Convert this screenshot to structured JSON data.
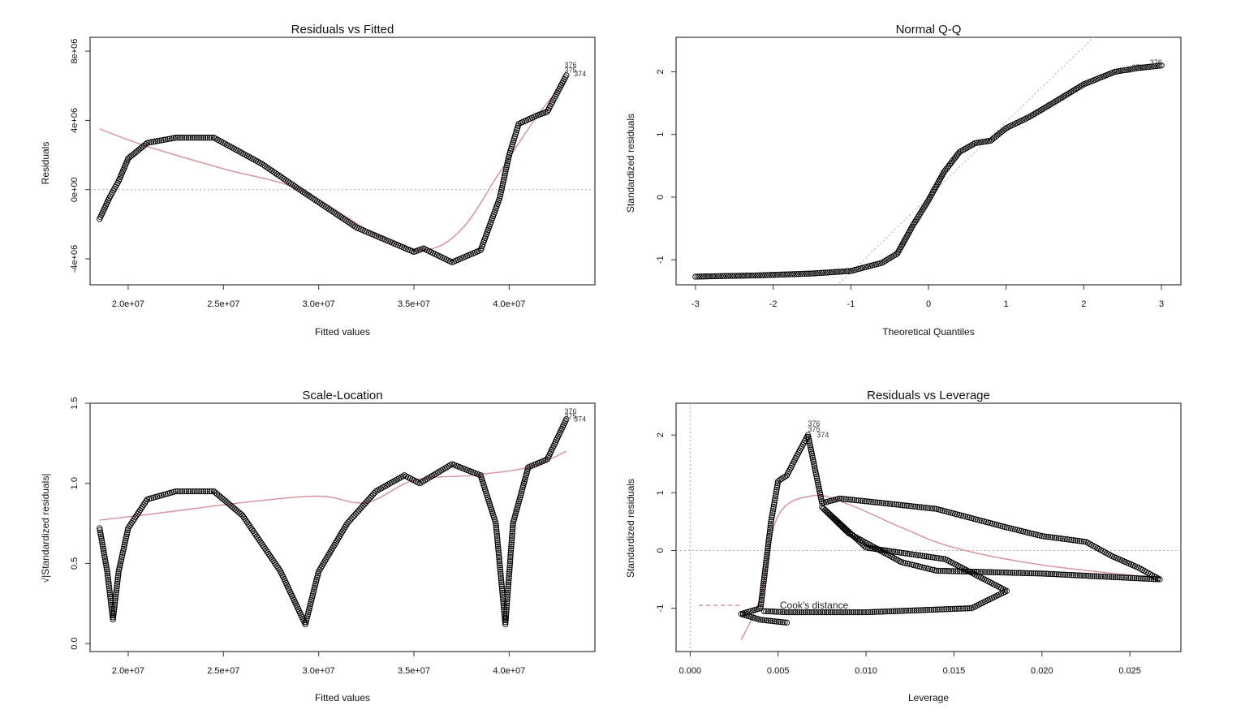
{
  "colors": {
    "points": "#000000",
    "smoother": "#d98f97",
    "reference": "#aaaaaa",
    "frame": "#333333"
  },
  "chart_data": [
    {
      "type": "scatter",
      "title": "Residuals vs Fitted",
      "xlabel": "Fitted values",
      "ylabel": "Residuals",
      "xticks": [
        20000000,
        25000000,
        30000000,
        35000000,
        40000000
      ],
      "xtick_labels": [
        "2.0e+07",
        "2.5e+07",
        "3.0e+07",
        "3.5e+07",
        "4.0e+07"
      ],
      "yticks": [
        -4000000,
        0,
        4000000,
        8000000
      ],
      "ytick_labels": [
        "-4e+06",
        "0e+00",
        "4e+06",
        "8e+06"
      ],
      "xlim": [
        18000000,
        44500000
      ],
      "ylim": [
        -5500000,
        8800000
      ],
      "reference_line": {
        "orientation": "horizontal",
        "value": 0
      },
      "points_path": [
        [
          18500000,
          -1700000
        ],
        [
          19000000,
          -500000
        ],
        [
          19500000,
          500000
        ],
        [
          20000000,
          1800000
        ],
        [
          21000000,
          2700000
        ],
        [
          22500000,
          3000000
        ],
        [
          24500000,
          3000000
        ],
        [
          27000000,
          1500000
        ],
        [
          29000000,
          0
        ],
        [
          32000000,
          -2200000
        ],
        [
          35000000,
          -3600000
        ],
        [
          35500000,
          -3400000
        ],
        [
          37000000,
          -4200000
        ],
        [
          38500000,
          -3500000
        ],
        [
          39500000,
          -500000
        ],
        [
          40000000,
          2000000
        ],
        [
          40500000,
          3800000
        ],
        [
          41500000,
          4300000
        ],
        [
          42000000,
          4500000
        ],
        [
          43000000,
          6600000
        ]
      ],
      "smoother": [
        [
          18500000,
          3500000
        ],
        [
          21000000,
          2500000
        ],
        [
          25000000,
          1200000
        ],
        [
          29000000,
          0
        ],
        [
          33000000,
          -2600000
        ],
        [
          35500000,
          -3500000
        ],
        [
          37500000,
          -2300000
        ],
        [
          39500000,
          1000000
        ],
        [
          41500000,
          4300000
        ],
        [
          43000000,
          6300000
        ]
      ],
      "annotations": [
        {
          "label": "376",
          "x": 42900000,
          "y": 7200000
        },
        {
          "label": "375",
          "x": 42900000,
          "y": 6900000
        },
        {
          "label": "374",
          "x": 43400000,
          "y": 6700000
        }
      ]
    },
    {
      "type": "scatter",
      "title": "Normal Q-Q",
      "xlabel": "Theoretical Quantiles",
      "ylabel": "Standardized residuals",
      "xticks": [
        -3,
        -2,
        -1,
        0,
        1,
        2,
        3
      ],
      "xtick_labels": [
        "-3",
        "-2",
        "-1",
        "0",
        "1",
        "2",
        "3"
      ],
      "yticks": [
        -1,
        0,
        1,
        2
      ],
      "ytick_labels": [
        "-1",
        "0",
        "1",
        "2"
      ],
      "xlim": [
        -3.25,
        3.25
      ],
      "ylim": [
        -1.4,
        2.55
      ],
      "reference_line": {
        "type": "diagonal",
        "slope": 1.2,
        "intercept": 0
      },
      "points_path": [
        [
          -3,
          -1.27
        ],
        [
          -2.2,
          -1.25
        ],
        [
          -1.5,
          -1.22
        ],
        [
          -1,
          -1.18
        ],
        [
          -0.6,
          -1.05
        ],
        [
          -0.4,
          -0.9
        ],
        [
          -0.2,
          -0.45
        ],
        [
          0,
          -0.05
        ],
        [
          0.2,
          0.4
        ],
        [
          0.4,
          0.72
        ],
        [
          0.6,
          0.86
        ],
        [
          0.8,
          0.9
        ],
        [
          1.0,
          1.1
        ],
        [
          1.3,
          1.28
        ],
        [
          1.6,
          1.5
        ],
        [
          2.0,
          1.8
        ],
        [
          2.4,
          2.0
        ],
        [
          2.7,
          2.06
        ],
        [
          3,
          2.1
        ]
      ],
      "annotations": [
        {
          "label": "376",
          "x": 2.85,
          "y": 2.15
        },
        {
          "label": "375",
          "x": 2.62,
          "y": 2.07
        },
        {
          "label": "374",
          "x": 2.45,
          "y": 2.02
        }
      ]
    },
    {
      "type": "scatter",
      "title": "Scale-Location",
      "xlabel": "Fitted values",
      "ylabel": "√|Standardized residuals|",
      "xticks": [
        20000000,
        25000000,
        30000000,
        35000000,
        40000000
      ],
      "xtick_labels": [
        "2.0e+07",
        "2.5e+07",
        "3.0e+07",
        "3.5e+07",
        "4.0e+07"
      ],
      "yticks": [
        0.0,
        0.5,
        1.0,
        1.5
      ],
      "ytick_labels": [
        "0.0",
        "0.5",
        "1.0",
        "1.5"
      ],
      "xlim": [
        18000000,
        44500000
      ],
      "ylim": [
        -0.05,
        1.5
      ],
      "points_path": [
        [
          18500000,
          0.72
        ],
        [
          18900000,
          0.45
        ],
        [
          19200000,
          0.15
        ],
        [
          19500000,
          0.45
        ],
        [
          20000000,
          0.72
        ],
        [
          21000000,
          0.9
        ],
        [
          22500000,
          0.95
        ],
        [
          24500000,
          0.95
        ],
        [
          26000000,
          0.8
        ],
        [
          28000000,
          0.45
        ],
        [
          29300000,
          0.12
        ],
        [
          30000000,
          0.45
        ],
        [
          31500000,
          0.75
        ],
        [
          33000000,
          0.95
        ],
        [
          34500000,
          1.05
        ],
        [
          35300000,
          1.0
        ],
        [
          37000000,
          1.12
        ],
        [
          38500000,
          1.05
        ],
        [
          39300000,
          0.75
        ],
        [
          39800000,
          0.12
        ],
        [
          40200000,
          0.75
        ],
        [
          41000000,
          1.1
        ],
        [
          42000000,
          1.15
        ],
        [
          43000000,
          1.4
        ]
      ],
      "smoother": [
        [
          18500000,
          0.77
        ],
        [
          22000000,
          0.82
        ],
        [
          26000000,
          0.88
        ],
        [
          30000000,
          0.92
        ],
        [
          32500000,
          0.88
        ],
        [
          35000000,
          1.02
        ],
        [
          38000000,
          1.05
        ],
        [
          41000000,
          1.1
        ],
        [
          43000000,
          1.2
        ]
      ],
      "annotations": [
        {
          "label": "376",
          "x": 42900000,
          "y": 1.45
        },
        {
          "label": "375",
          "x": 42900000,
          "y": 1.42
        },
        {
          "label": "374",
          "x": 43400000,
          "y": 1.4
        }
      ]
    },
    {
      "type": "scatter",
      "title": "Residuals vs Leverage",
      "xlabel": "Leverage",
      "ylabel": "Standardized residuals",
      "xticks": [
        0.0,
        0.005,
        0.01,
        0.015,
        0.02,
        0.025
      ],
      "xtick_labels": [
        "0.000",
        "0.005",
        "0.010",
        "0.015",
        "0.020",
        "0.025"
      ],
      "yticks": [
        -1,
        0,
        1,
        2
      ],
      "ytick_labels": [
        "-1",
        "0",
        "1",
        "2"
      ],
      "xlim": [
        -0.0008,
        0.0279
      ],
      "ylim": [
        -1.75,
        2.55
      ],
      "reference_line": {
        "orientation": "horizontal",
        "value": 0
      },
      "legend_text": "Cook's distance",
      "points_path": [
        [
          0.0055,
          -1.25
        ],
        [
          0.004,
          -1.2
        ],
        [
          0.0029,
          -1.1
        ],
        [
          0.004,
          -1.0
        ],
        [
          0.0042,
          -0.5
        ],
        [
          0.0046,
          0.5
        ],
        [
          0.005,
          1.2
        ],
        [
          0.0055,
          1.3
        ],
        [
          0.006,
          1.6
        ],
        [
          0.0067,
          2.0
        ],
        [
          0.0075,
          0.82
        ],
        [
          0.0085,
          0.9
        ],
        [
          0.011,
          0.82
        ],
        [
          0.014,
          0.72
        ],
        [
          0.018,
          0.4
        ],
        [
          0.02,
          0.25
        ],
        [
          0.0225,
          0.15
        ],
        [
          0.024,
          -0.1
        ],
        [
          0.0255,
          -0.3
        ],
        [
          0.0267,
          -0.5
        ],
        [
          0.02,
          -0.4
        ],
        [
          0.014,
          -0.35
        ],
        [
          0.012,
          -0.2
        ],
        [
          0.009,
          0.3
        ],
        [
          0.0075,
          0.75
        ],
        [
          0.01,
          0.05
        ],
        [
          0.0145,
          -0.15
        ],
        [
          0.018,
          -0.7
        ],
        [
          0.016,
          -1.0
        ],
        [
          0.01,
          -1.07
        ],
        [
          0.0055,
          -1.07
        ],
        [
          0.0042,
          -1.05
        ]
      ],
      "smoother": [
        [
          0.0029,
          -1.55
        ],
        [
          0.004,
          -0.8
        ],
        [
          0.005,
          0.6
        ],
        [
          0.007,
          0.95
        ],
        [
          0.009,
          0.8
        ],
        [
          0.012,
          0.4
        ],
        [
          0.015,
          0.05
        ],
        [
          0.02,
          -0.25
        ],
        [
          0.0267,
          -0.48
        ]
      ],
      "cooks_curve": [
        [
          0.0005,
          -0.95
        ],
        [
          0.0029,
          -0.95
        ]
      ],
      "annotations": [
        {
          "label": "376",
          "x": 0.0067,
          "y": 2.2
        },
        {
          "label": "375",
          "x": 0.0067,
          "y": 2.1
        },
        {
          "label": "374",
          "x": 0.0072,
          "y": 2.0
        }
      ]
    }
  ]
}
